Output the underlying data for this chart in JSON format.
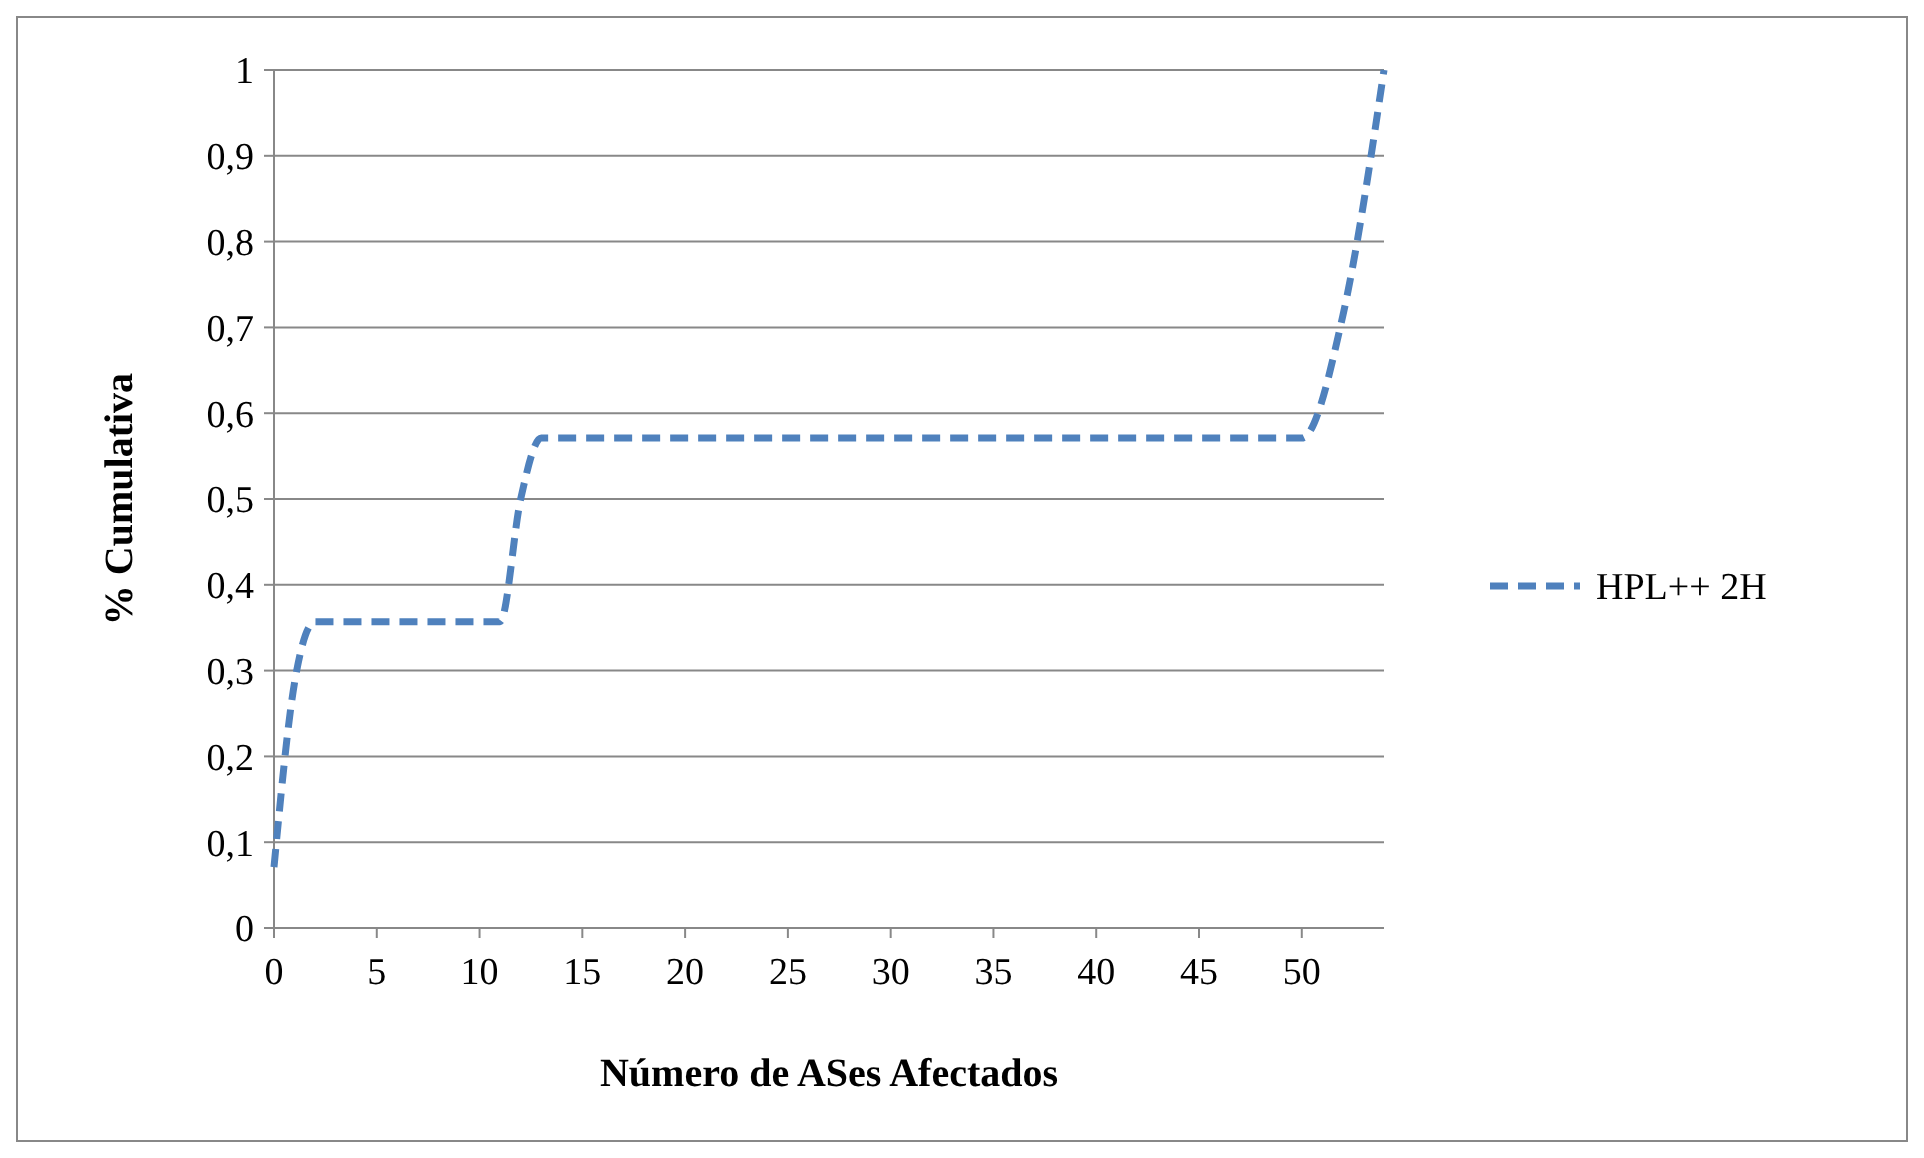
{
  "chart_data": {
    "type": "line",
    "xlabel": "Número de ASes Afectados",
    "ylabel": "% Cumulativa",
    "series": [
      {
        "name": "HPL++ 2H",
        "color": "#4f81bd",
        "x": [
          0,
          1,
          2,
          11,
          12,
          13,
          50,
          52,
          54
        ],
        "values": [
          0.071,
          0.286,
          0.357,
          0.357,
          0.5,
          0.571,
          0.571,
          0.714,
          1
        ]
      }
    ],
    "xlim": [
      0,
      54
    ],
    "xticks": [
      0,
      5,
      10,
      15,
      20,
      25,
      30,
      35,
      40,
      45,
      50
    ],
    "ylim": [
      0,
      1
    ],
    "yticks": [
      {
        "value": 0,
        "label": "0"
      },
      {
        "value": 0.1,
        "label": "0,1"
      },
      {
        "value": 0.2,
        "label": "0,2"
      },
      {
        "value": 0.3,
        "label": "0,3"
      },
      {
        "value": 0.4,
        "label": "0,4"
      },
      {
        "value": 0.5,
        "label": "0,5"
      },
      {
        "value": 0.6,
        "label": "0,6"
      },
      {
        "value": 0.7,
        "label": "0,7"
      },
      {
        "value": 0.8,
        "label": "0,8"
      },
      {
        "value": 0.9,
        "label": "0,9"
      },
      {
        "value": 1,
        "label": "1"
      }
    ],
    "grid": "y",
    "legend": "right",
    "line_style": "dashed"
  }
}
